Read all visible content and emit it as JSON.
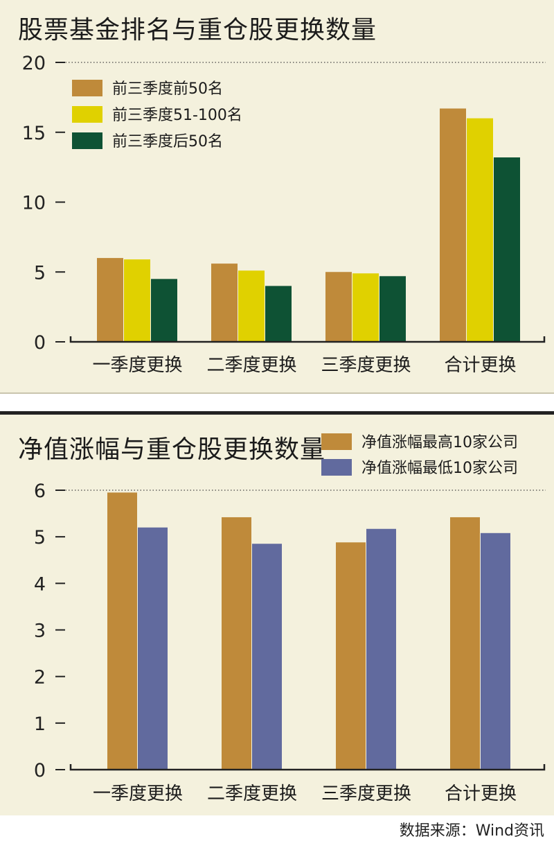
{
  "colors": {
    "series1": "#bf8a3a",
    "series2": "#e0d100",
    "series3": "#0e5234",
    "high": "#bf8a3a",
    "low": "#616a9e"
  },
  "chart_data": [
    {
      "type": "bar",
      "title": "股票基金排名与重仓股更换数量",
      "categories": [
        "一季度更换",
        "二季度更换",
        "三季度更换",
        "合计更换"
      ],
      "series": [
        {
          "name": "前三季度前50名",
          "values": [
            6.0,
            5.6,
            5.0,
            16.7
          ]
        },
        {
          "name": "前三季度51-100名",
          "values": [
            5.9,
            5.1,
            4.9,
            16.0
          ]
        },
        {
          "name": "前三季度后50名",
          "values": [
            4.5,
            4.0,
            4.7,
            13.2
          ]
        }
      ],
      "yticks": [
        "0",
        "5",
        "10",
        "15",
        "20"
      ],
      "ylim": [
        0,
        20
      ],
      "legend": "top-left",
      "grid": false
    },
    {
      "type": "bar",
      "title": "净值涨幅与重仓股更换数量",
      "categories": [
        "一季度更换",
        "二季度更换",
        "三季度更换",
        "合计更换"
      ],
      "series": [
        {
          "name": "净值涨幅最高10家公司",
          "values": [
            5.95,
            5.42,
            4.88,
            5.42
          ]
        },
        {
          "name": "净值涨幅最低10家公司",
          "values": [
            5.2,
            4.85,
            5.17,
            5.08
          ]
        }
      ],
      "yticks": [
        "0",
        "1",
        "2",
        "3",
        "4",
        "5",
        "6"
      ],
      "ylim": [
        0,
        6
      ],
      "legend": "top-right",
      "grid": false
    }
  ],
  "source": "数据来源：Wind资讯"
}
